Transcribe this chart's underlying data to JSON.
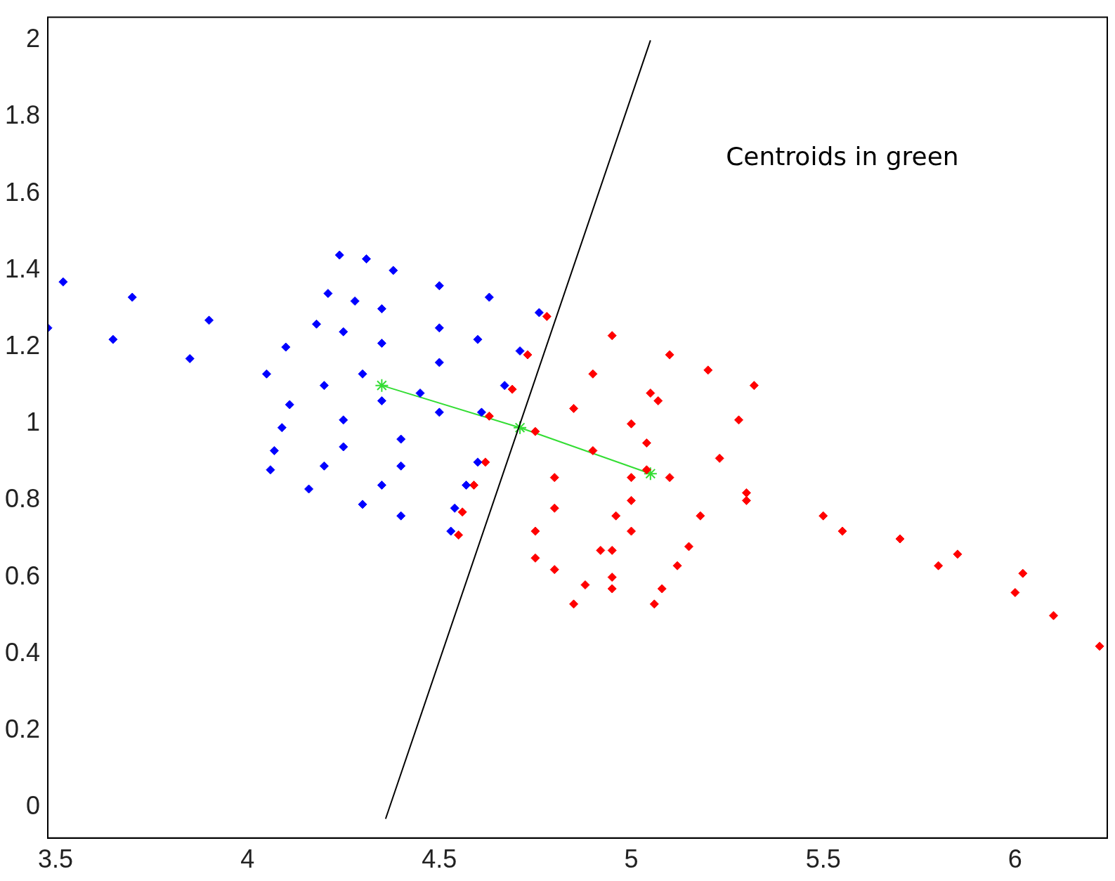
{
  "chart_data": {
    "type": "scatter",
    "annotations": [
      "Centroids in green"
    ],
    "xlim": [
      3.48,
      6.24
    ],
    "ylim": [
      -0.08,
      2.06
    ],
    "xticks": [
      3.5,
      4,
      4.5,
      5,
      5.5,
      6
    ],
    "yticks": [
      0,
      0.2,
      0.4,
      0.6,
      0.8,
      1,
      1.2,
      1.4,
      1.6,
      1.8,
      2
    ],
    "grid": false,
    "legend": false,
    "series": [
      {
        "color": "#0000ff",
        "marker": "diamond",
        "x": [
          3.52,
          3.7,
          3.9,
          4.1,
          4.3,
          4.45,
          4.61,
          3.48,
          3.65,
          3.85,
          4.05,
          4.2,
          4.35,
          4.5,
          4.24,
          4.31,
          4.38,
          4.5,
          4.63,
          4.76,
          4.21,
          4.28,
          4.35,
          4.5,
          4.6,
          4.71,
          4.18,
          4.25,
          4.35,
          4.5,
          4.67,
          4.11,
          4.25,
          4.4,
          4.6,
          4.09,
          4.25,
          4.4,
          4.57,
          4.07,
          4.2,
          4.35,
          4.54,
          4.06,
          4.16,
          4.3,
          4.4,
          4.53
        ],
        "values": [
          1.37,
          1.33,
          1.27,
          1.2,
          1.13,
          1.08,
          1.03,
          1.25,
          1.22,
          1.17,
          1.13,
          1.1,
          1.06,
          1.03,
          1.44,
          1.43,
          1.4,
          1.36,
          1.33,
          1.29,
          1.34,
          1.32,
          1.3,
          1.25,
          1.22,
          1.19,
          1.26,
          1.24,
          1.21,
          1.16,
          1.1,
          1.05,
          1.01,
          0.96,
          0.9,
          0.99,
          0.94,
          0.89,
          0.84,
          0.93,
          0.89,
          0.84,
          0.78,
          0.88,
          0.83,
          0.79,
          0.76,
          0.72
        ]
      },
      {
        "color": "#ff0000",
        "marker": "diamond",
        "x": [
          4.78,
          4.95,
          5.1,
          5.2,
          5.32,
          4.73,
          4.9,
          5.05,
          5.28,
          4.69,
          4.85,
          5.0,
          5.23,
          4.63,
          4.75,
          4.9,
          5.04,
          5.3,
          5.55,
          5.8,
          6.0,
          6.1,
          6.22,
          5.1,
          5.3,
          5.5,
          5.7,
          5.85,
          6.02,
          4.62,
          4.8,
          5.0,
          5.18,
          4.59,
          4.8,
          5.0,
          5.15,
          4.56,
          4.75,
          4.95,
          5.12,
          4.55,
          4.75,
          4.95,
          5.08,
          4.8,
          4.95,
          5.06,
          5.07,
          5.04,
          5.0,
          4.96,
          4.92,
          4.88,
          4.85
        ],
        "values": [
          1.28,
          1.23,
          1.18,
          1.14,
          1.1,
          1.18,
          1.13,
          1.08,
          1.01,
          1.09,
          1.04,
          1.0,
          0.91,
          1.02,
          0.98,
          0.93,
          0.88,
          0.8,
          0.72,
          0.63,
          0.56,
          0.5,
          0.42,
          0.86,
          0.82,
          0.76,
          0.7,
          0.66,
          0.61,
          0.9,
          0.86,
          0.8,
          0.76,
          0.84,
          0.78,
          0.72,
          0.68,
          0.77,
          0.72,
          0.67,
          0.63,
          0.71,
          0.65,
          0.6,
          0.57,
          0.62,
          0.57,
          0.53,
          1.06,
          0.95,
          0.86,
          0.76,
          0.67,
          0.58,
          0.53
        ]
      },
      {
        "type": "line",
        "color": "#000000",
        "marker": "none",
        "x": [
          4.36,
          5.05
        ],
        "values": [
          -0.03,
          2.0
        ]
      },
      {
        "type": "line",
        "color": "#33dd33",
        "marker": "cross",
        "x": [
          4.35,
          4.71,
          5.05
        ],
        "values": [
          1.1,
          0.99,
          0.87
        ]
      }
    ]
  }
}
